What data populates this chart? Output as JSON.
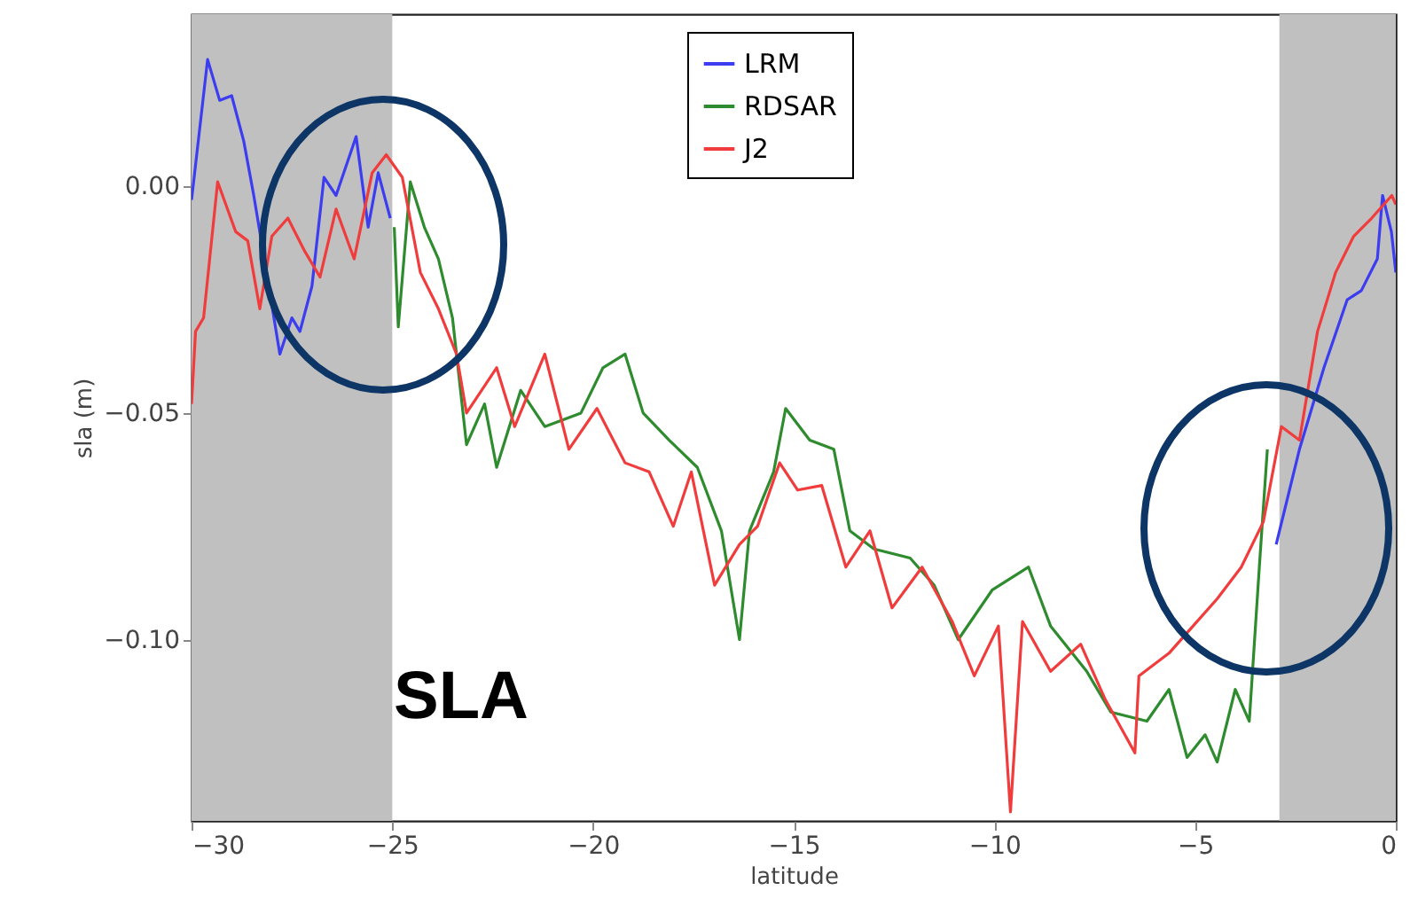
{
  "chart_data": {
    "type": "line",
    "xlabel": "latitude",
    "ylabel": "sla (m)",
    "xlim": [
      -30,
      0
    ],
    "ylim": [
      -0.14,
      0.038
    ],
    "xticks": [
      -30,
      -25,
      -20,
      -15,
      -10,
      -5,
      0
    ],
    "yticks": [
      {
        "value": 0,
        "label": "0.00"
      },
      {
        "value": -0.05,
        "label": "−0.05"
      },
      {
        "value": -0.1,
        "label": "−0.10"
      }
    ],
    "grid": false,
    "legend": "top",
    "bands": [
      {
        "axis": "x",
        "from": -30,
        "to": -25,
        "color": "#c0c0c0"
      },
      {
        "axis": "x",
        "from": -2.9,
        "to": 0,
        "color": "#c0c0c0"
      }
    ],
    "annotations": [
      "SLA"
    ],
    "series": [
      {
        "name": "LRM",
        "color": "#3c3cf0",
        "x": [
          -30,
          -29.6,
          -29.3,
          -29.0,
          -28.7,
          -28.45,
          -28.15,
          -27.8,
          -27.5,
          -27.3,
          -27.0,
          -26.7,
          -26.4,
          -25.9,
          -25.6,
          -25.35,
          -25.05,
          null,
          -2.98,
          -2.4,
          -1.79,
          -1.21,
          -0.86,
          -0.46,
          -0.33,
          -0.11,
          0
        ],
        "values": [
          -0.003,
          0.028,
          0.019,
          0.02,
          0.01,
          -0.002,
          -0.018,
          -0.037,
          -0.029,
          -0.032,
          -0.022,
          0.002,
          -0.002,
          0.011,
          -0.009,
          0.003,
          -0.007,
          null,
          -0.079,
          -0.058,
          -0.04,
          -0.025,
          -0.023,
          -0.016,
          -0.002,
          -0.01,
          -0.019
        ]
      },
      {
        "name": "RDSAR",
        "color": "#2e8b2e",
        "x": [
          -24.95,
          -24.85,
          -24.55,
          -24.2,
          -23.85,
          -23.5,
          -23.15,
          -22.7,
          -22.4,
          -21.8,
          -21.2,
          -20.3,
          -19.75,
          -19.2,
          -18.75,
          -18.1,
          -17.4,
          -16.8,
          -16.35,
          -16.1,
          -15.5,
          -15.2,
          -14.6,
          -14.0,
          -13.6,
          -13.0,
          -12.1,
          -11.5,
          -10.9,
          -10.05,
          -9.15,
          -8.6,
          -7.7,
          -7.1,
          -6.2,
          -5.65,
          -5.2,
          -4.75,
          -4.45,
          -4.0,
          -3.65,
          -3.4,
          -3.2
        ],
        "values": [
          -0.009,
          -0.031,
          0.001,
          -0.009,
          -0.016,
          -0.029,
          -0.057,
          -0.048,
          -0.062,
          -0.045,
          -0.053,
          -0.05,
          -0.04,
          -0.037,
          -0.05,
          -0.056,
          -0.062,
          -0.076,
          -0.1,
          -0.076,
          -0.063,
          -0.049,
          -0.056,
          -0.058,
          -0.076,
          -0.08,
          -0.082,
          -0.088,
          -0.1,
          -0.089,
          -0.084,
          -0.097,
          -0.107,
          -0.116,
          -0.118,
          -0.111,
          -0.126,
          -0.121,
          -0.127,
          -0.111,
          -0.118,
          -0.084,
          -0.058
        ]
      },
      {
        "name": "J2",
        "color": "#f03c3c",
        "x": [
          -30,
          -29.9,
          -29.7,
          -29.35,
          -28.9,
          -28.6,
          -28.3,
          -28.0,
          -27.6,
          -27.2,
          -26.8,
          -26.4,
          -25.95,
          -25.5,
          -25.15,
          -24.75,
          -24.3,
          -23.85,
          -23.4,
          -23.15,
          -22.4,
          -21.95,
          -21.2,
          -20.6,
          -19.9,
          -19.2,
          -18.6,
          -18.0,
          -17.55,
          -16.97,
          -16.35,
          -15.9,
          -15.35,
          -14.9,
          -14.3,
          -13.7,
          -13.1,
          -12.55,
          -11.8,
          -11.05,
          -10.5,
          -9.9,
          -9.6,
          -9.3,
          -8.6,
          -7.85,
          -7.25,
          -6.5,
          -6.4,
          -5.65,
          -5.05,
          -4.45,
          -3.85,
          -3.3,
          -2.85,
          -2.4,
          -1.95,
          -1.5,
          -1.05,
          -0.6,
          -0.1,
          0
        ],
        "values": [
          -0.048,
          -0.032,
          -0.029,
          0.001,
          -0.01,
          -0.012,
          -0.027,
          -0.011,
          -0.007,
          -0.014,
          -0.02,
          -0.005,
          -0.016,
          0.003,
          0.007,
          0.002,
          -0.019,
          -0.027,
          -0.037,
          -0.05,
          -0.04,
          -0.053,
          -0.037,
          -0.058,
          -0.049,
          -0.061,
          -0.063,
          -0.075,
          -0.063,
          -0.088,
          -0.079,
          -0.075,
          -0.061,
          -0.067,
          -0.066,
          -0.084,
          -0.076,
          -0.093,
          -0.084,
          -0.096,
          -0.108,
          -0.097,
          -0.138,
          -0.096,
          -0.107,
          -0.101,
          -0.113,
          -0.125,
          -0.108,
          -0.103,
          -0.097,
          -0.091,
          -0.084,
          -0.074,
          -0.053,
          -0.056,
          -0.032,
          -0.019,
          -0.011,
          -0.007,
          -0.002,
          -0.004
        ]
      }
    ]
  }
}
